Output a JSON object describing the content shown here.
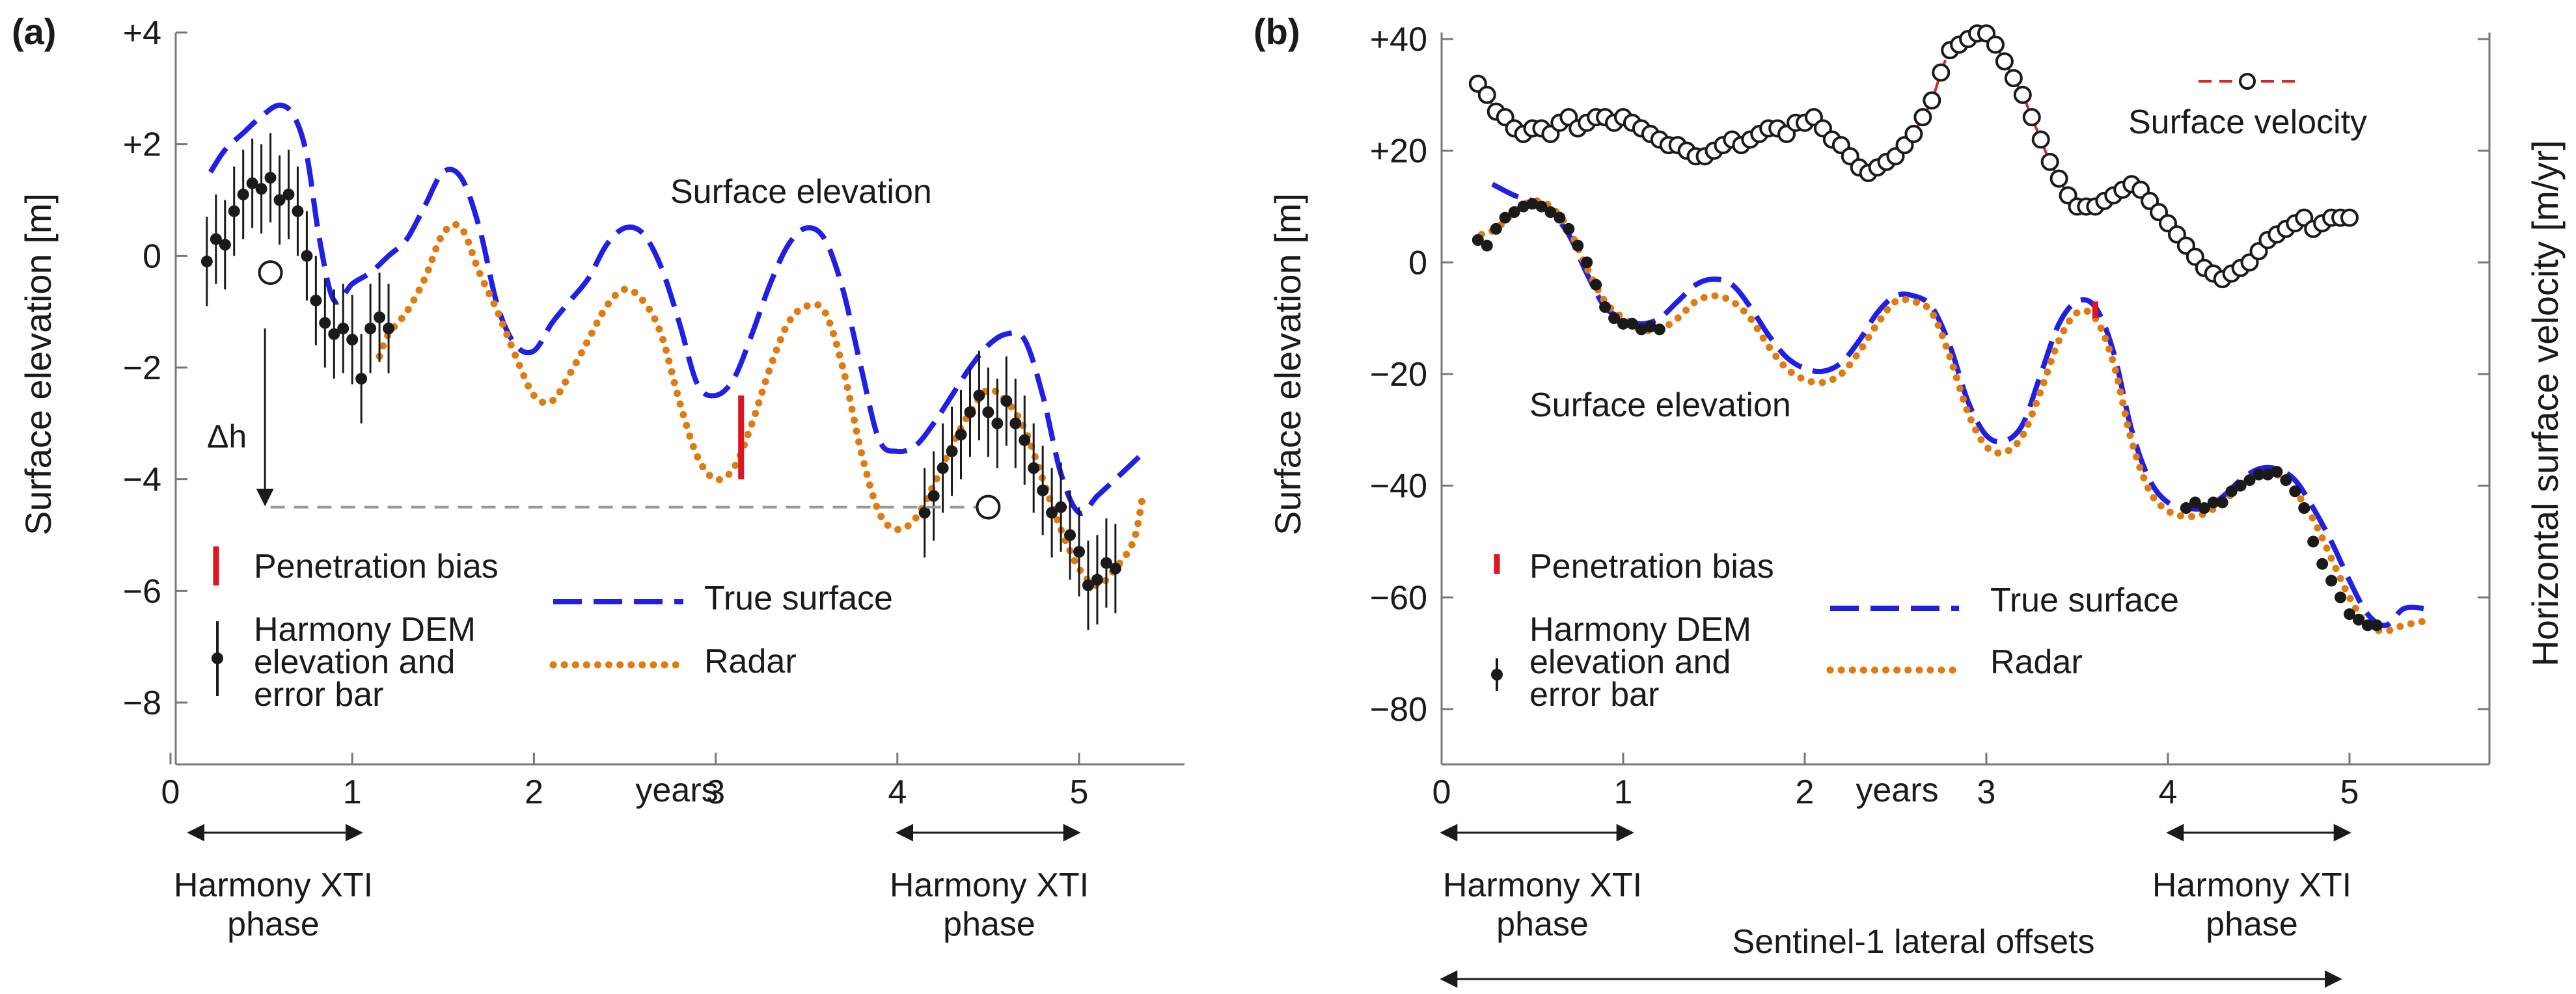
{
  "chart_data": [
    {
      "type": "line",
      "panel_label": "(a)",
      "ylabel": "Surface elevation [m]",
      "xlabel": "years",
      "xlim": [
        0,
        5.5
      ],
      "ylim": [
        -8.4,
        4
      ],
      "xticks": [
        0,
        1,
        2,
        3,
        4,
        5
      ],
      "xtick_labels": [
        "0",
        "1",
        "2",
        "3",
        "4",
        "5"
      ],
      "yticks": [
        4,
        2,
        0,
        -2,
        -4,
        -6,
        -8
      ],
      "ytick_labels": [
        "+4",
        "+2",
        "0",
        "−2",
        "−4",
        "−6",
        "−8"
      ],
      "curve_label": "Surface elevation",
      "series": [
        {
          "name": "True surface",
          "color": "#1f1fe6",
          "style": "dashed",
          "x": [
            0.22,
            0.3,
            0.4,
            0.5,
            0.6,
            0.68,
            0.75,
            0.82,
            0.9,
            1.0,
            1.1,
            1.2,
            1.3,
            1.4,
            1.5,
            1.6,
            1.7,
            1.8,
            1.9,
            2.0,
            2.1,
            2.2,
            2.3,
            2.4,
            2.5,
            2.6,
            2.7,
            2.8,
            2.9,
            3.0,
            3.1,
            3.2,
            3.3,
            3.4,
            3.5,
            3.6,
            3.7,
            3.8,
            3.9,
            4.0,
            4.1,
            4.2,
            4.3,
            4.4,
            4.5,
            4.6,
            4.7,
            4.8,
            4.9,
            5.0,
            5.1,
            5.2,
            5.33
          ],
          "y": [
            1.5,
            1.9,
            2.2,
            2.5,
            2.7,
            2.5,
            1.8,
            0.3,
            -0.8,
            -0.5,
            -0.3,
            0.0,
            0.3,
            0.9,
            1.5,
            1.4,
            0.5,
            -0.9,
            -1.6,
            -1.7,
            -1.2,
            -0.8,
            -0.4,
            0.2,
            0.5,
            0.4,
            -0.2,
            -1.2,
            -2.3,
            -2.5,
            -2.2,
            -1.4,
            -0.5,
            0.2,
            0.5,
            0.3,
            -0.6,
            -2.0,
            -3.3,
            -3.5,
            -3.4,
            -3.0,
            -2.5,
            -2.0,
            -1.6,
            -1.4,
            -1.5,
            -2.5,
            -3.9,
            -4.6,
            -4.3,
            -4.0,
            -3.6
          ]
        },
        {
          "name": "Radar",
          "color": "#e07b10",
          "style": "dotted",
          "x": [
            1.15,
            1.2,
            1.3,
            1.4,
            1.5,
            1.6,
            1.7,
            1.8,
            1.9,
            2.0,
            2.1,
            2.2,
            2.3,
            2.4,
            2.5,
            2.6,
            2.7,
            2.8,
            2.9,
            3.0,
            3.1,
            3.2,
            3.3,
            3.4,
            3.5,
            3.6,
            3.7,
            3.8,
            3.9,
            4.0,
            4.1,
            4.2,
            4.3,
            4.4,
            4.5,
            4.6,
            4.7,
            4.8,
            4.9,
            5.0,
            5.1,
            5.2,
            5.3,
            5.35
          ],
          "y": [
            -1.8,
            -1.4,
            -1.0,
            -0.4,
            0.4,
            0.5,
            -0.3,
            -1.0,
            -1.8,
            -2.5,
            -2.6,
            -2.1,
            -1.5,
            -0.9,
            -0.6,
            -0.8,
            -1.4,
            -2.6,
            -3.6,
            -4.0,
            -3.8,
            -3.0,
            -2.0,
            -1.2,
            -0.9,
            -1.0,
            -2.0,
            -3.5,
            -4.6,
            -4.9,
            -4.7,
            -4.1,
            -3.4,
            -2.8,
            -2.4,
            -2.6,
            -3.1,
            -4.0,
            -4.9,
            -5.6,
            -5.9,
            -5.6,
            -5.1,
            -4.3
          ]
        },
        {
          "name": "Harmony DEM elevation and error bar",
          "color": "#1a1a1a",
          "style": "points",
          "x": [
            0.2,
            0.25,
            0.3,
            0.35,
            0.4,
            0.45,
            0.5,
            0.55,
            0.6,
            0.65,
            0.7,
            0.75,
            0.8,
            0.85,
            0.9,
            0.95,
            1.0,
            1.05,
            1.1,
            1.15,
            1.2,
            4.15,
            4.2,
            4.25,
            4.3,
            4.35,
            4.4,
            4.45,
            4.5,
            4.55,
            4.6,
            4.65,
            4.7,
            4.75,
            4.8,
            4.85,
            4.9,
            4.95,
            5.0,
            5.05,
            5.1,
            5.15,
            5.2
          ],
          "y": [
            -0.1,
            0.3,
            0.2,
            0.8,
            1.1,
            1.3,
            1.2,
            1.4,
            1.0,
            1.1,
            0.8,
            0.0,
            -0.8,
            -1.2,
            -1.4,
            -1.3,
            -1.5,
            -2.2,
            -1.3,
            -1.1,
            -1.3,
            -4.6,
            -4.3,
            -3.8,
            -3.5,
            -3.2,
            -2.8,
            -2.5,
            -2.8,
            -3.0,
            -2.6,
            -3.0,
            -3.3,
            -3.8,
            -4.2,
            -4.6,
            -4.5,
            -5.0,
            -5.3,
            -5.9,
            -5.8,
            -5.5,
            -5.6
          ]
        }
      ],
      "penetration_bias": {
        "x": 3.14,
        "y_top": -2.5,
        "y_bottom": -4.0
      },
      "delta_h": {
        "label": "Δh",
        "circle1": [
          0.55,
          -0.3
        ],
        "circle2": [
          4.5,
          -4.5
        ],
        "baseline_y": -4.5
      },
      "legend": {
        "penetration_bias": "Penetration bias",
        "harmony_dem": "Harmony DEM elevation and error bar",
        "harmony_dem_lines": [
          "Harmony DEM",
          "elevation and",
          "error bar"
        ],
        "true_surface": "True surface",
        "radar": "Radar"
      },
      "phases": [
        {
          "lines": [
            "Harmony XTI",
            "phase"
          ],
          "x_start": 0.1,
          "x_end": 1.05
        },
        {
          "lines": [
            "Harmony XTI",
            "phase"
          ],
          "x_start": 4.0,
          "x_end": 5.0
        }
      ]
    },
    {
      "type": "line",
      "panel_label": "(b)",
      "ylabel": "Surface elevation [m]",
      "ylabel_right": "Horizontal surface velocity [m/yr]",
      "xlabel": "years",
      "xlim": [
        0,
        5.5
      ],
      "ylim": [
        -85,
        45
      ],
      "xticks": [
        0,
        1,
        2,
        3,
        4,
        5
      ],
      "xtick_labels": [
        "0",
        "1",
        "2",
        "3",
        "4",
        "5"
      ],
      "yticks": [
        40,
        20,
        0,
        -20,
        -40,
        -60,
        -80
      ],
      "ytick_labels": [
        "+40",
        "+20",
        "0",
        "−20",
        "−40",
        "−60",
        "−80"
      ],
      "curve_label": "Surface elevation",
      "series": [
        {
          "name": "True surface",
          "color": "#1f1fe6",
          "style": "dashed",
          "x": [
            0.28,
            0.4,
            0.5,
            0.6,
            0.7,
            0.8,
            0.9,
            1.0,
            1.1,
            1.2,
            1.3,
            1.4,
            1.5,
            1.6,
            1.7,
            1.8,
            1.9,
            2.0,
            2.1,
            2.2,
            2.3,
            2.4,
            2.5,
            2.6,
            2.7,
            2.8,
            2.9,
            3.0,
            3.1,
            3.2,
            3.3,
            3.4,
            3.5,
            3.6,
            3.7,
            3.8,
            3.9,
            4.0,
            4.1,
            4.2,
            4.3,
            4.4,
            4.5,
            4.6,
            4.7,
            4.8,
            4.9,
            5.0,
            5.1,
            5.2,
            5.3,
            5.42
          ],
          "y": [
            14,
            12,
            11,
            9,
            5,
            -2,
            -8,
            -10,
            -11,
            -10,
            -7,
            -4,
            -3,
            -4,
            -8,
            -13,
            -17,
            -19,
            -19.5,
            -18,
            -14,
            -9,
            -6,
            -6,
            -8,
            -15,
            -25,
            -31,
            -32,
            -29,
            -20,
            -11,
            -7,
            -8,
            -16,
            -30,
            -39,
            -43,
            -44,
            -44,
            -42,
            -39,
            -37,
            -37,
            -39,
            -44,
            -50,
            -57,
            -63,
            -65,
            -62,
            -62
          ]
        },
        {
          "name": "Radar",
          "color": "#e07b10",
          "style": "dotted",
          "x": [
            0.22,
            0.3,
            0.4,
            0.5,
            0.6,
            0.7,
            0.8,
            0.9,
            1.0,
            1.1,
            1.2,
            1.3,
            1.4,
            1.5,
            1.6,
            1.7,
            1.8,
            1.9,
            2.0,
            2.1,
            2.2,
            2.3,
            2.4,
            2.5,
            2.6,
            2.7,
            2.8,
            2.9,
            3.0,
            3.1,
            3.2,
            3.3,
            3.4,
            3.5,
            3.6,
            3.7,
            3.8,
            3.9,
            4.0,
            4.1,
            4.2,
            4.3,
            4.4,
            4.5,
            4.6,
            4.7,
            4.8,
            4.9,
            5.0,
            5.1,
            5.2,
            5.3,
            5.45
          ],
          "y": [
            5,
            6,
            9,
            11,
            10,
            6,
            -1,
            -7,
            -10,
            -12,
            -12,
            -10,
            -7,
            -6,
            -7,
            -10,
            -15,
            -19,
            -21,
            -21.5,
            -20,
            -16,
            -11,
            -7,
            -7,
            -9,
            -17,
            -27,
            -33,
            -34,
            -31,
            -23,
            -14,
            -9,
            -10,
            -18,
            -32,
            -41,
            -44.5,
            -45.5,
            -45,
            -43,
            -40,
            -38,
            -38,
            -41,
            -46,
            -53,
            -60,
            -65,
            -66,
            -65,
            -64
          ]
        },
        {
          "name": "Harmony DEM elevation and error bar",
          "color": "#1a1a1a",
          "style": "points",
          "x": [
            0.2,
            0.25,
            0.3,
            0.35,
            0.4,
            0.45,
            0.5,
            0.55,
            0.6,
            0.65,
            0.7,
            0.75,
            0.8,
            0.85,
            0.9,
            0.95,
            1.0,
            1.05,
            1.1,
            1.15,
            1.2,
            4.1,
            4.15,
            4.2,
            4.25,
            4.3,
            4.35,
            4.4,
            4.45,
            4.5,
            4.55,
            4.6,
            4.65,
            4.7,
            4.75,
            4.8,
            4.85,
            4.9,
            4.95,
            5.0,
            5.05,
            5.1,
            5.15
          ],
          "y": [
            4,
            3,
            6,
            8,
            9,
            10,
            10.5,
            10,
            9,
            8,
            6,
            3,
            0,
            -4,
            -8,
            -10,
            -11,
            -11,
            -12,
            -11.5,
            -12,
            -44,
            -43,
            -44,
            -43,
            -43,
            -41,
            -40,
            -39,
            -38,
            -38,
            -37.5,
            -39,
            -41,
            -44,
            -50,
            -54,
            -57,
            -60,
            -63,
            -64,
            -65,
            -65
          ]
        },
        {
          "name": "Surface velocity",
          "color": "#d42a2a",
          "style": "markers",
          "x": [
            0.2,
            0.25,
            0.3,
            0.35,
            0.4,
            0.45,
            0.5,
            0.55,
            0.6,
            0.65,
            0.7,
            0.75,
            0.8,
            0.85,
            0.9,
            0.95,
            1.0,
            1.05,
            1.1,
            1.15,
            1.2,
            1.25,
            1.3,
            1.35,
            1.4,
            1.45,
            1.5,
            1.55,
            1.6,
            1.65,
            1.7,
            1.75,
            1.8,
            1.85,
            1.9,
            1.95,
            2.0,
            2.05,
            2.1,
            2.15,
            2.2,
            2.25,
            2.3,
            2.35,
            2.4,
            2.45,
            2.5,
            2.55,
            2.6,
            2.65,
            2.7,
            2.75,
            2.8,
            2.85,
            2.9,
            2.95,
            3.0,
            3.05,
            3.1,
            3.15,
            3.2,
            3.25,
            3.3,
            3.35,
            3.4,
            3.45,
            3.5,
            3.55,
            3.6,
            3.65,
            3.7,
            3.75,
            3.8,
            3.85,
            3.9,
            3.95,
            4.0,
            4.05,
            4.1,
            4.15,
            4.2,
            4.25,
            4.3,
            4.35,
            4.4,
            4.45,
            4.5,
            4.55,
            4.6,
            4.65,
            4.7,
            4.75,
            4.8,
            4.85,
            4.9,
            4.95,
            5.0
          ],
          "y": [
            32,
            30,
            27,
            26,
            24,
            23,
            24,
            24,
            23,
            25,
            26,
            24,
            25,
            26,
            26,
            25,
            26,
            25,
            24,
            23,
            22,
            21,
            21,
            20,
            19,
            19,
            20,
            21,
            22,
            21,
            22,
            23,
            24,
            24,
            23,
            25,
            25,
            26,
            24,
            22,
            21,
            19,
            17,
            16,
            17,
            18,
            19,
            21,
            23,
            26,
            29,
            34,
            38,
            39,
            40,
            41,
            41,
            39,
            36,
            33,
            30,
            26,
            22,
            18,
            15,
            12,
            10,
            10,
            10,
            11,
            12,
            13,
            14,
            13,
            11,
            9,
            7,
            5,
            3,
            1,
            -1,
            -2,
            -3,
            -2,
            -1,
            0,
            2,
            4,
            5,
            6,
            7,
            8,
            6,
            7,
            8,
            8,
            8
          ]
        }
      ],
      "penetration_bias": {
        "x": 3.6,
        "y_top": -7,
        "y_bottom": -10
      },
      "legend": {
        "penetration_bias": "Penetration bias",
        "harmony_dem": "Harmony DEM elevation and error bar",
        "harmony_dem_lines": [
          "Harmony DEM",
          "elevation and",
          "error bar"
        ],
        "true_surface": "True surface",
        "radar": "Radar",
        "surface_velocity": "Surface velocity"
      },
      "phases": [
        {
          "lines": [
            "Harmony XTI",
            "phase"
          ],
          "x_start": 0.0,
          "x_end": 1.05
        },
        {
          "lines": [
            "Harmony XTI",
            "phase"
          ],
          "x_start": 4.0,
          "x_end": 5.0
        }
      ],
      "sentinel": {
        "label": "Sentinel-1 lateral offsets",
        "x_start": 0.0,
        "x_end": 4.95
      }
    }
  ]
}
